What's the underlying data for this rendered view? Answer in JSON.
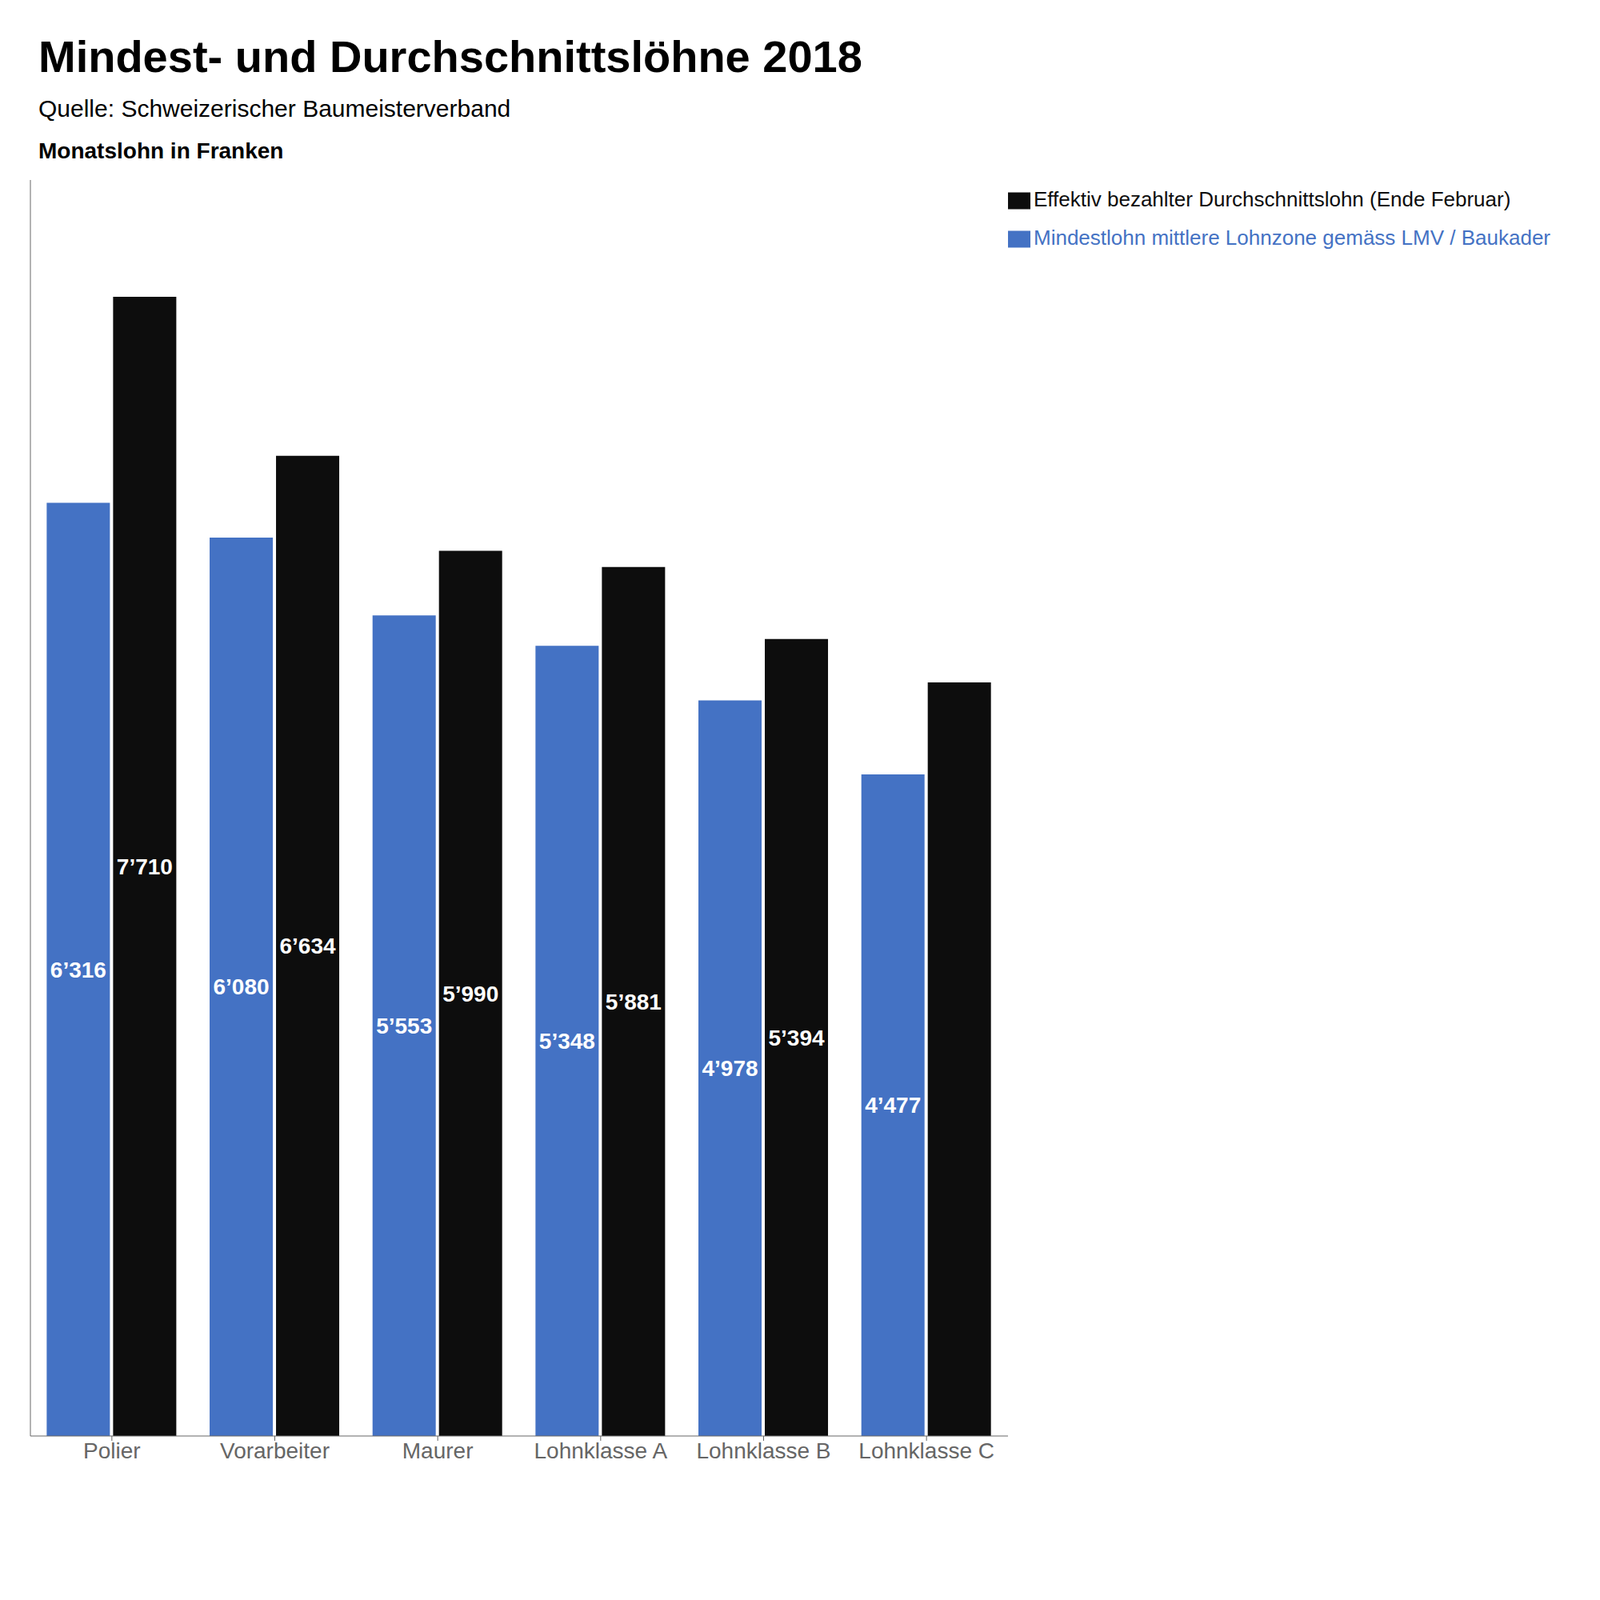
{
  "chart_data": {
    "type": "bar",
    "title": "Mindest- und Durchschnittslöhne 2018",
    "subtitle": "Quelle: Schweizerischer Baumeisterverband",
    "ylabel": "Monatslohn in Franken",
    "categories": [
      "Polier",
      "Vorarbeiter",
      "Maurer",
      "Lohnklasse A",
      "Lohnklasse B",
      "Lohnklasse C"
    ],
    "series": [
      {
        "name": "Mindestlohn mittlere Lohnzone gemäss LMV / Baukader",
        "color": "#4472C4",
        "values": [
          6316,
          6080,
          5553,
          5348,
          4978,
          4477
        ],
        "value_labels": [
          "6’316",
          "6’080",
          "5’553",
          "5’348",
          "4’978",
          "4’477"
        ]
      },
      {
        "name": "Effektiv bezahlter Durchschnittslohn (Ende Februar)",
        "color": "#0d0d0d",
        "values": [
          7710,
          6634,
          5990,
          5881,
          5394,
          5100
        ],
        "value_labels": [
          "7’710",
          "6’634",
          "5’990",
          "5’881",
          "5’394",
          null
        ]
      }
    ],
    "ylim": [
      0,
      8500
    ],
    "grid": false,
    "legend": "upper right",
    "data_labels": true,
    "tick_labels": "x"
  }
}
